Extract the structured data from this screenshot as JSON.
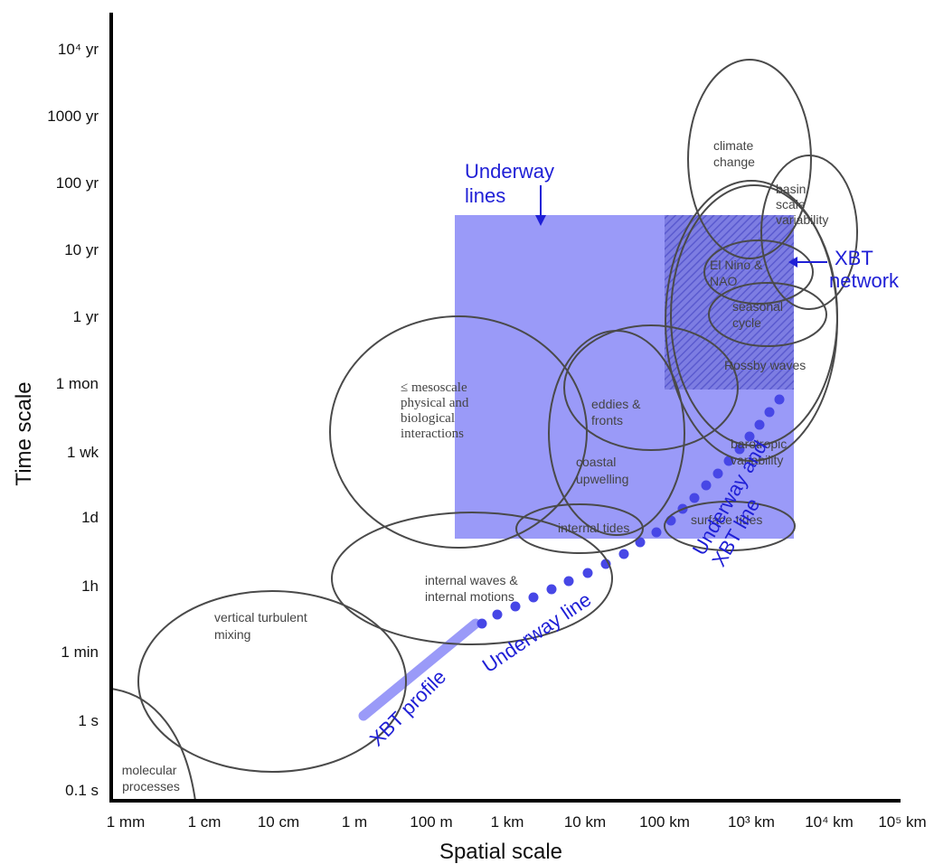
{
  "axes": {
    "x_title": "Spatial scale",
    "y_title": "Time scale",
    "x_ticks": [
      "1 mm",
      "1 cm",
      "10 cm",
      "1 m",
      "100 m",
      "1 km",
      "10 km",
      "100 km",
      "10³ km",
      "10⁴ km",
      "10⁵ km"
    ],
    "y_ticks": [
      "0.1 s",
      "1 s",
      "1 min",
      "1h",
      "1d",
      "1 wk",
      "1 mon",
      "1 yr",
      "10 yr",
      "100 yr",
      "1000 yr",
      "10⁴ yr"
    ]
  },
  "processes": {
    "molecular": [
      "molecular",
      "processes"
    ],
    "vertical_turbulent": [
      "vertical turbulent",
      "mixing"
    ],
    "internal_waves": [
      "internal waves &",
      "internal motions"
    ],
    "mesoscale": [
      "≤ mesoscale",
      "physical and",
      "biological",
      "interactions"
    ],
    "internal_tides": "internal tides",
    "coastal": [
      "coastal",
      "upwelling"
    ],
    "eddies": [
      "eddies &",
      "fronts"
    ],
    "surface_tides": "surface tides",
    "barotropic": [
      "barotropic",
      "variability"
    ],
    "rossby": "Rossby waves",
    "seasonal": [
      "seasonal",
      "cycle"
    ],
    "elnino": [
      "El Nino &",
      "NAO"
    ],
    "basin": [
      "basin",
      "scale",
      "variability"
    ],
    "climate": [
      "climate",
      "change"
    ]
  },
  "observations": {
    "underway_lines": [
      "Underway",
      "lines"
    ],
    "xbt_network": [
      "XBT",
      "network"
    ],
    "xbt_profile": "XBT profile",
    "underway_line": "Underway line",
    "underway_xbt_line": [
      "Underway and",
      "XBT line"
    ]
  },
  "colors": {
    "coverage_fill": "#9a9af8",
    "label_blue": "#1f1fd6",
    "dot_blue": "#4747e6",
    "ellipse_stroke": "#4a4a4a"
  }
}
